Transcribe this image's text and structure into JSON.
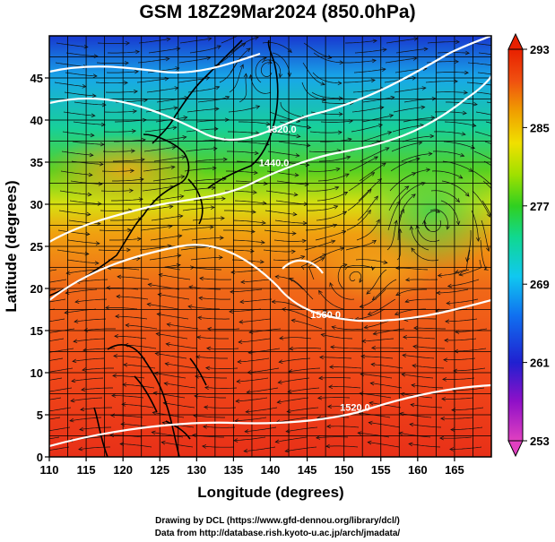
{
  "title": "GSM 18Z29Mar2024 (850.0hPa)",
  "x_axis": {
    "label": "Longitude (degrees)",
    "ticks": [
      110,
      115,
      120,
      125,
      130,
      135,
      140,
      145,
      150,
      155,
      160,
      165
    ],
    "range": [
      110,
      170
    ]
  },
  "y_axis": {
    "label": "Latitude  (degrees)",
    "ticks": [
      0,
      5,
      10,
      15,
      20,
      25,
      30,
      35,
      40,
      45
    ],
    "range": [
      0,
      50
    ]
  },
  "colorbar": {
    "ticks": [
      293,
      285,
      277,
      269,
      261,
      253
    ],
    "range": [
      253,
      293
    ],
    "colors": [
      "#e040c0",
      "#9010c8",
      "#2020d0",
      "#1070f0",
      "#10c8f0",
      "#10d890",
      "#30d020",
      "#a0e000",
      "#f0e000",
      "#f0a000",
      "#f05010",
      "#e82000"
    ]
  },
  "contour_labels": [
    {
      "text": "1320.0",
      "lon": 141.5,
      "lat": 38.5
    },
    {
      "text": "1440.0",
      "lon": 140.5,
      "lat": 34.5
    },
    {
      "text": "1560.0",
      "lon": 147.5,
      "lat": 16.5
    },
    {
      "text": "1520.0",
      "lon": 151.5,
      "lat": 5.5
    }
  ],
  "credits": {
    "line1": "Drawing by DCL (https://www.gfd-dennou.org/library/dcl/)",
    "line2": "Data from http://database.rish.kyoto-u.ac.jp/arch/jmadata/"
  }
}
